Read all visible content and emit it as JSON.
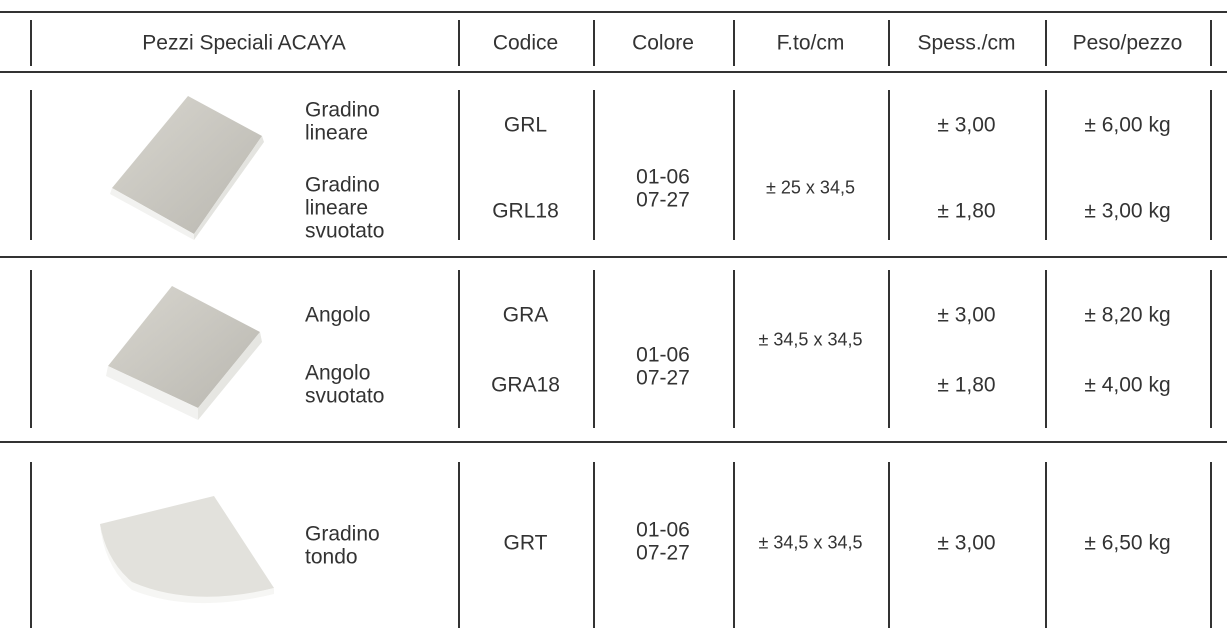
{
  "header": [
    "Pezzi Speciali ACAYA",
    "Codice",
    "Colore",
    "F.to/cm",
    "Spess./cm",
    "Peso/pezzo"
  ],
  "groups": [
    {
      "items": [
        {
          "name": [
            "Gradino",
            "lineare"
          ],
          "code": "GRL",
          "thickness": "± 3,00",
          "weight": "± 6,00 kg"
        },
        {
          "name": [
            "Gradino",
            "lineare",
            "svuotato"
          ],
          "code": "GRL18",
          "thickness": "± 1,80",
          "weight": "± 3,00 kg"
        }
      ],
      "color": [
        "01-06",
        "07-27"
      ],
      "format": "± 25 x 34,5"
    },
    {
      "items": [
        {
          "name": [
            "Angolo"
          ],
          "code": "GRA",
          "thickness": "± 3,00",
          "weight": "± 8,20 kg"
        },
        {
          "name": [
            "Angolo",
            "svuotato"
          ],
          "code": "GRA18",
          "thickness": "± 1,80",
          "weight": "± 4,00 kg"
        }
      ],
      "color": [
        "01-06",
        "07-27"
      ],
      "format": "± 34,5 x 34,5"
    },
    {
      "items": [
        {
          "name": [
            "Gradino",
            "tondo"
          ],
          "code": "GRT",
          "thickness": "± 3,00",
          "weight": "± 6,50 kg"
        }
      ],
      "color": [
        "01-06",
        "07-27"
      ],
      "format": "± 34,5 x 34,5"
    }
  ]
}
